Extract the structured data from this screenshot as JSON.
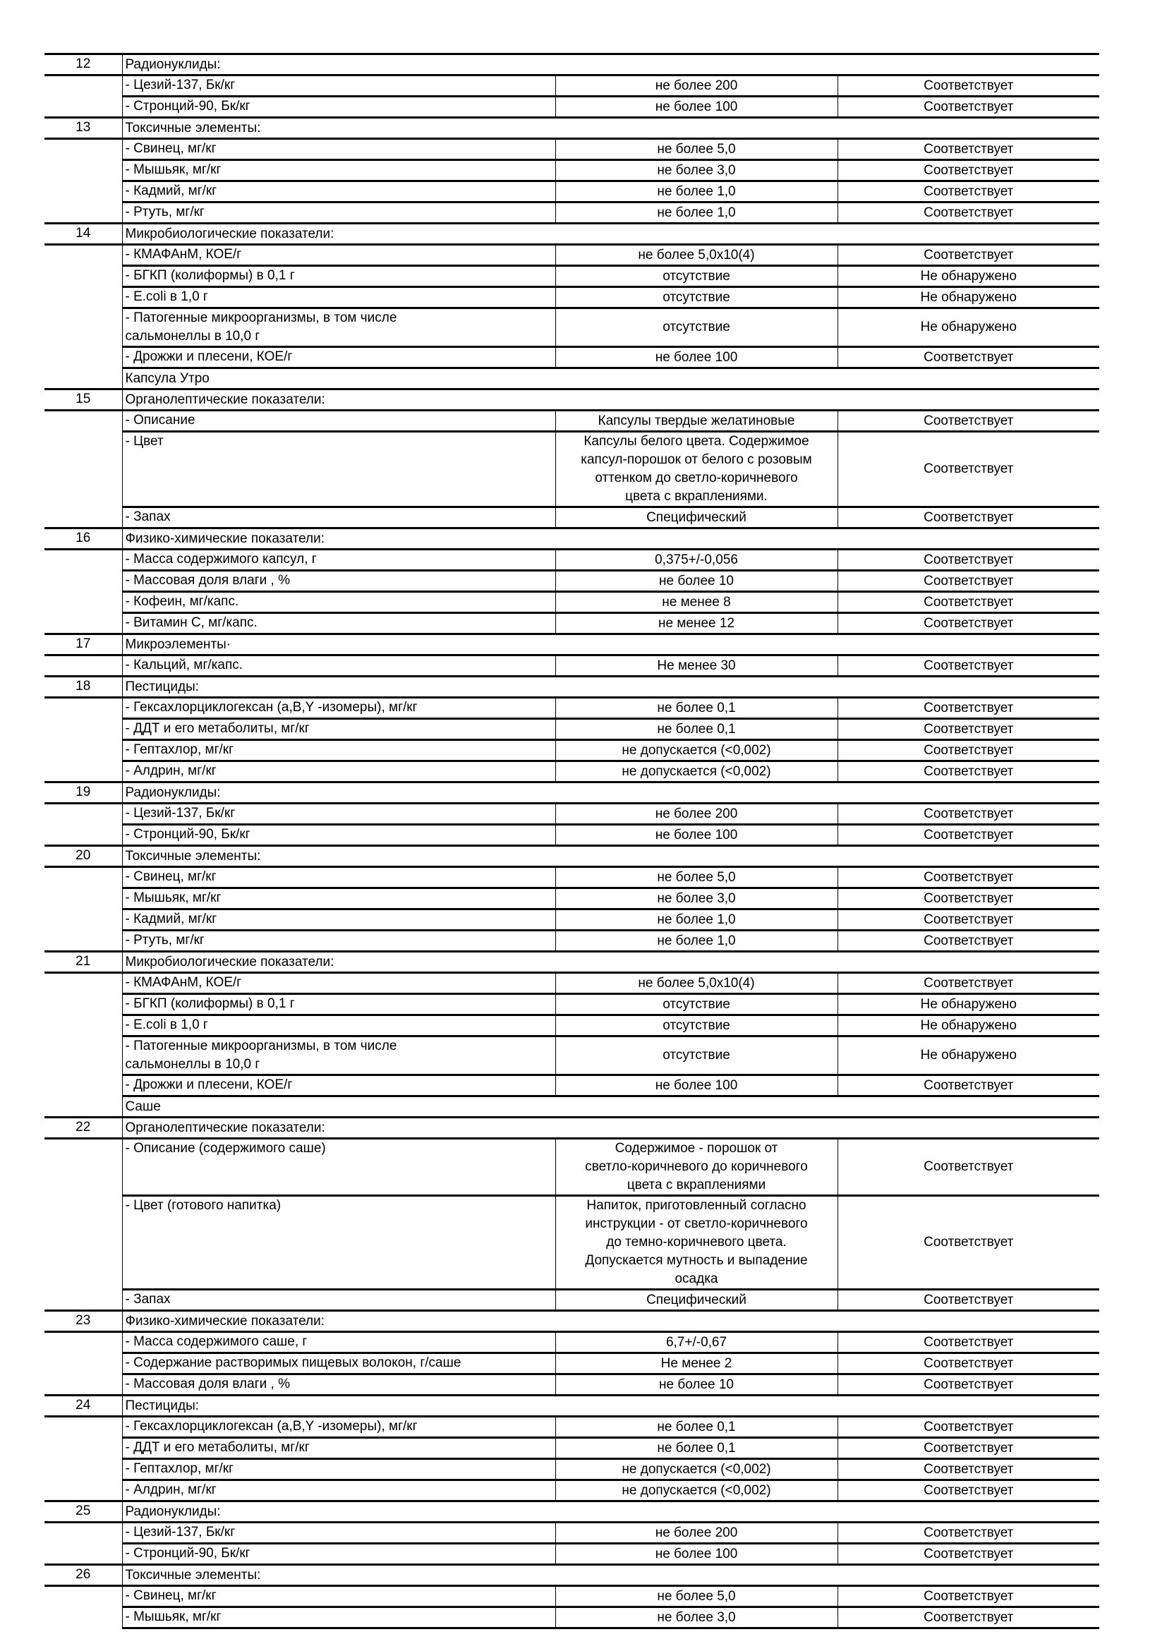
{
  "rows": [
    {
      "type": "section",
      "num": "12",
      "title": "Радионуклиды:"
    },
    {
      "type": "item",
      "param": "- Цезий-137,  Бк/кг",
      "norm": "не более 200",
      "result": "Соответствует"
    },
    {
      "type": "item",
      "param": "- Стронций-90,  Бк/кг",
      "norm": "не более 100",
      "result": "Соответствует"
    },
    {
      "type": "section",
      "num": "13",
      "title": "Токсичные элементы:"
    },
    {
      "type": "item",
      "param": "- Свинец,  мг/кг",
      "norm": "не более 5,0",
      "result": "Соответствует"
    },
    {
      "type": "item",
      "param": "- Мышьяк,  мг/кг",
      "norm": "не более 3,0",
      "result": "Соответствует"
    },
    {
      "type": "item",
      "param": "- Кадмий,  мг/кг",
      "norm": "не более 1,0",
      "result": "Соответствует"
    },
    {
      "type": "item",
      "param": "- Ртуть,  мг/кг",
      "norm": "не более 1,0",
      "result": "Соответствует"
    },
    {
      "type": "section",
      "num": "14",
      "title": "Микробиологические показатели:"
    },
    {
      "type": "item",
      "param": "- КМАФАнМ,  КОЕ/г",
      "norm": "не более 5,0х10(4)",
      "result": "Соответствует"
    },
    {
      "type": "item",
      "param": "- БГКП (колиформы)   в 0,1 г",
      "norm": "отсутствие",
      "result": "Не обнаружено"
    },
    {
      "type": "item",
      "param": "- E.coli   в 1,0 г",
      "norm": "отсутствие",
      "result": "Не обнаружено"
    },
    {
      "type": "item",
      "param": "- Патогенные микроорганизмы, в том числе\nсальмонеллы   в 10,0 г",
      "norm": "отсутствие",
      "result": "Не обнаружено"
    },
    {
      "type": "item",
      "param": "- Дрожжи и плесени,  КОЕ/г",
      "norm": "не более 100",
      "result": "Соответствует"
    },
    {
      "type": "group",
      "title": "Капсула Утро"
    },
    {
      "type": "section",
      "num": "15",
      "title": "Органолептические показатели:"
    },
    {
      "type": "item",
      "param": "- Описание",
      "norm": "Капсулы твердые желатиновые",
      "result": "Соответствует"
    },
    {
      "type": "item",
      "param": "- Цвет",
      "norm": "Капсулы белого цвета. Содержимое\nкапсул-порошок от белого с розовым\nоттенком до светло-коричневого\nцвета с вкраплениями.",
      "result": "Соответствует"
    },
    {
      "type": "item",
      "param": "- Запах",
      "norm": "Специфический",
      "result": "Соответствует"
    },
    {
      "type": "section",
      "num": "16",
      "title": "Физико-химические показатели:"
    },
    {
      "type": "item",
      "param": "- Масса содержимого капсул,  г",
      "norm": "0,375+/-0,056",
      "result": "Соответствует"
    },
    {
      "type": "item",
      "param": "- Массовая доля влаги ,  %",
      "norm": "не более 10",
      "result": "Соответствует"
    },
    {
      "type": "item",
      "param": "- Кофеин,  мг/капс.",
      "norm": "не менее 8",
      "result": "Соответствует"
    },
    {
      "type": "item",
      "param": "- Витамин С,  мг/капс.",
      "norm": "не менее 12",
      "result": "Соответствует"
    },
    {
      "type": "section",
      "num": "17",
      "title": "Микроэлементы·"
    },
    {
      "type": "item",
      "param": "- Кальций,  мг/капс.",
      "norm": "Не менее 30",
      "result": "Соответствует"
    },
    {
      "type": "section",
      "num": "18",
      "title": "Пестициды:"
    },
    {
      "type": "item",
      "param": "- Гексахлорциклогексан (а,B,Y -изомеры),  мг/кг",
      "norm": "не более 0,1",
      "result": "Соответствует"
    },
    {
      "type": "item",
      "param": "- ДДТ и его метаболиты,  мг/кг",
      "norm": "не более 0,1",
      "result": "Соответствует"
    },
    {
      "type": "item",
      "param": "- Гептахлор,  мг/кг",
      "norm": "не допускается (<0,002)",
      "result": "Соответствует"
    },
    {
      "type": "item",
      "param": "- Алдрин,  мг/кг",
      "norm": "не допускается (<0,002)",
      "result": "Соответствует"
    },
    {
      "type": "section",
      "num": "19",
      "title": "Радионуклиды:"
    },
    {
      "type": "item",
      "param": "- Цезий-137,  Бк/кг",
      "norm": "не более 200",
      "result": "Соответствует"
    },
    {
      "type": "item",
      "param": "- Стронций-90,  Бк/кг",
      "norm": "не более 100",
      "result": "Соответствует"
    },
    {
      "type": "section",
      "num": "20",
      "title": "Токсичные элементы:"
    },
    {
      "type": "item",
      "param": "- Свинец,  мг/кг",
      "norm": "не более 5,0",
      "result": "Соответствует"
    },
    {
      "type": "item",
      "param": "- Мышьяк,  мг/кг",
      "norm": "не более 3,0",
      "result": "Соответствует"
    },
    {
      "type": "item",
      "param": "- Кадмий,  мг/кг",
      "norm": "не более 1,0",
      "result": "Соответствует"
    },
    {
      "type": "item",
      "param": "- Ртуть,  мг/кг",
      "norm": "не более 1,0",
      "result": "Соответствует"
    },
    {
      "type": "section",
      "num": "21",
      "title": "Микробиологические показатели:"
    },
    {
      "type": "item",
      "param": "- КМАФАнМ,  КОЕ/г",
      "norm": "не более 5,0х10(4)",
      "result": "Соответствует"
    },
    {
      "type": "item",
      "param": "- БГКП (колиформы)   в 0,1 г",
      "norm": "отсутствие",
      "result": "Не обнаружено"
    },
    {
      "type": "item",
      "param": "- E.coli   в 1,0 г",
      "norm": "отсутствие",
      "result": "Не обнаружено"
    },
    {
      "type": "item",
      "param": "- Патогенные микроорганизмы, в том числе\nсальмонеллы   в 10,0 г",
      "norm": "отсутствие",
      "result": "Не обнаружено"
    },
    {
      "type": "item",
      "param": "- Дрожжи и плесени,  КОЕ/г",
      "norm": "не более 100",
      "result": "Соответствует"
    },
    {
      "type": "group",
      "title": "Саше"
    },
    {
      "type": "section",
      "num": "22",
      "title": "Органолептические показатели:"
    },
    {
      "type": "item",
      "param": "- Описание (содержимого саше)",
      "norm": "Содержимое - порошок от\nсветло-коричневого до коричневого\nцвета с вкраплениями",
      "result": "Соответствует"
    },
    {
      "type": "item",
      "param": "- Цвет (готового напитка)",
      "norm": "Напиток, приготовленный согласно\nинструкции - от светло-коричневого\nдо темно-коричневого цвета.\nДопускается мутность и выпадение\nосадка",
      "result": "Соответствует"
    },
    {
      "type": "item",
      "param": "- Запах",
      "norm": "Специфический",
      "result": "Соответствует"
    },
    {
      "type": "section",
      "num": "23",
      "title": "Физико-химические показатели:"
    },
    {
      "type": "item",
      "param": "- Масса содержимого саше,  г",
      "norm": "6,7+/-0,67",
      "result": "Соответствует"
    },
    {
      "type": "item",
      "param": "- Содержание растворимых пищевых волокон,  г/саше",
      "norm": "Не менее 2",
      "result": "Соответствует"
    },
    {
      "type": "item",
      "param": "- Массовая доля влаги ,  %",
      "norm": "не более 10",
      "result": "Соответствует"
    },
    {
      "type": "section",
      "num": "24",
      "title": "Пестициды:"
    },
    {
      "type": "item",
      "param": "- Гексахлорциклогексан (а,B,Y -изомеры),  мг/кг",
      "norm": "не более 0,1",
      "result": "Соответствует"
    },
    {
      "type": "item",
      "param": "- ДДТ и его метаболиты,  мг/кг",
      "norm": "не более 0,1",
      "result": "Соответствует"
    },
    {
      "type": "item",
      "param": "- Гептахлор,  мг/кг",
      "norm": "не допускается (<0,002)",
      "result": "Соответствует"
    },
    {
      "type": "item",
      "param": "- Алдрин,  мг/кг",
      "norm": "не допускается (<0,002)",
      "result": "Соответствует"
    },
    {
      "type": "section",
      "num": "25",
      "title": "Радионуклиды:"
    },
    {
      "type": "item",
      "param": "- Цезий-137,  Бк/кг",
      "norm": "не более 200",
      "result": "Соответствует"
    },
    {
      "type": "item",
      "param": "- Стронций-90,  Бк/кг",
      "norm": "не более 100",
      "result": "Соответствует"
    },
    {
      "type": "section",
      "num": "26",
      "title": "Токсичные элементы:"
    },
    {
      "type": "item",
      "param": "- Свинец,  мг/кг",
      "norm": "не более 5,0",
      "result": "Соответствует"
    },
    {
      "type": "item",
      "param": "- Мышьяк,  мг/кг",
      "norm": "не более 3,0",
      "result": "Соответствует"
    }
  ]
}
